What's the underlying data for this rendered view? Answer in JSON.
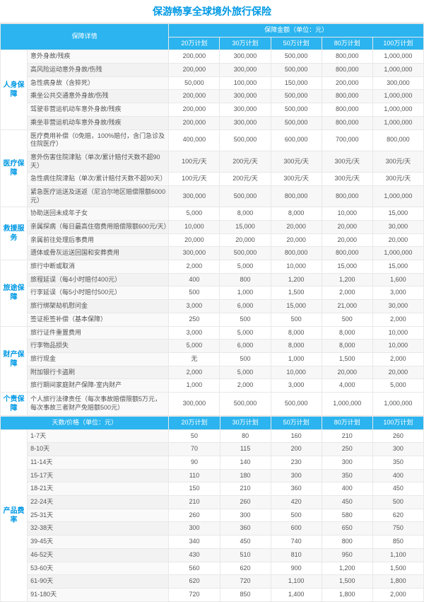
{
  "title": "保游畅享全球境外旅行保险",
  "header1": {
    "cat": "保障详情",
    "amt": "保障金额（单位：元）"
  },
  "plans": [
    "20万计划",
    "30万计划",
    "50万计划",
    "80万计划",
    "100万计划"
  ],
  "sections": [
    {
      "name": "人身保障",
      "rows": [
        {
          "d": "意外身故/残疾",
          "v": [
            "200,000",
            "300,000",
            "500,000",
            "800,000",
            "1,000,000"
          ]
        },
        {
          "d": "高风险运动意外身故/伤残",
          "v": [
            "200,000",
            "300,000",
            "500,000",
            "800,000",
            "1,000,000"
          ]
        },
        {
          "d": "急性病身故（含猝死）",
          "v": [
            "50,000",
            "100,000",
            "150,000",
            "200,000",
            "300,000"
          ]
        },
        {
          "d": "乘坐公共交通意外身故/伤残",
          "v": [
            "200,000",
            "300,000",
            "500,000",
            "800,000",
            "1,000,000"
          ]
        },
        {
          "d": "驾驶非营运机动车意外身故/残疾",
          "v": [
            "200,000",
            "300,000",
            "500,000",
            "800,000",
            "1,000,000"
          ]
        },
        {
          "d": "乘坐非营运机动车意外身故/残疾",
          "v": [
            "200,000",
            "300,000",
            "500,000",
            "800,000",
            "1,000,000"
          ]
        }
      ]
    },
    {
      "name": "医疗保障",
      "rows": [
        {
          "d": "医疗费用补偿（0免赔，100%赔付，含门急诊及住院医疗）",
          "v": [
            "400,000",
            "500,000",
            "600,000",
            "700,000",
            "800,000"
          ]
        },
        {
          "d": "意外伤害住院津贴（单次/累计赔付天数不超90天）",
          "v": [
            "100元/天",
            "200元/天",
            "300元/天",
            "300元/天",
            "300元/天"
          ]
        },
        {
          "d": "急性病住院津贴（单次/累计赔付天数不超90天）",
          "v": [
            "100元/天",
            "200元/天",
            "300元/天",
            "300元/天",
            "300元/天"
          ]
        },
        {
          "d": "紧急医疗运送及送返（尼泊尔地区赔偿限额6000元）",
          "v": [
            "300,000",
            "500,000",
            "800,000",
            "800,000",
            "1,000,000"
          ]
        }
      ]
    },
    {
      "name": "救援服务",
      "rows": [
        {
          "d": "协助送回未成年子女",
          "v": [
            "5,000",
            "8,000",
            "8,000",
            "10,000",
            "15,000"
          ]
        },
        {
          "d": "亲属探病（每日最高住宿费用赔偿限额600元/天）",
          "v": [
            "10,000",
            "15,000",
            "20,000",
            "20,000",
            "30,000"
          ]
        },
        {
          "d": "亲属前往处理后事费用",
          "v": [
            "20,000",
            "20,000",
            "20,000",
            "20,000",
            "20,000"
          ]
        },
        {
          "d": "遗体或骨灰运送回国和安葬费用",
          "v": [
            "300,000",
            "500,000",
            "800,000",
            "800,000",
            "1,000,000"
          ]
        }
      ]
    },
    {
      "name": "旅途保障",
      "rows": [
        {
          "d": "旅行中断或取消",
          "v": [
            "2,000",
            "5,000",
            "10,000",
            "15,000",
            "15,000"
          ]
        },
        {
          "d": "旅程延误（每4小时赔付400元）",
          "v": [
            "400",
            "800",
            "1,200",
            "1,200",
            "1,600"
          ]
        },
        {
          "d": "行李延误（每5小时赔付500元）",
          "v": [
            "500",
            "1,000",
            "1,500",
            "2,000",
            "3,000"
          ]
        },
        {
          "d": "旅行绑架劫机慰问金",
          "v": [
            "3,000",
            "6,000",
            "15,000",
            "21,000",
            "30,000"
          ]
        },
        {
          "d": "签证拒签补偿（基本保障）",
          "v": [
            "250",
            "500",
            "500",
            "500",
            "2,000"
          ]
        }
      ]
    },
    {
      "name": "财产保障",
      "rows": [
        {
          "d": "旅行证件重置费用",
          "v": [
            "3,000",
            "5,000",
            "8,000",
            "8,000",
            "10,000"
          ]
        },
        {
          "d": "行李物品损失",
          "v": [
            "5,000",
            "6,000",
            "8,000",
            "8,000",
            "10,000"
          ]
        },
        {
          "d": "旅行现金",
          "v": [
            "无",
            "500",
            "1,000",
            "1,500",
            "2,000"
          ]
        },
        {
          "d": "附加银行卡盗刷",
          "v": [
            "2,000",
            "5,000",
            "10,000",
            "20,000",
            "20,000"
          ]
        },
        {
          "d": "旅行期间家庭财产保障-室内财产",
          "v": [
            "1,000",
            "2,000",
            "3,000",
            "4,000",
            "5,000"
          ]
        }
      ]
    },
    {
      "name": "个责保障",
      "rows": [
        {
          "d": "个人旅行法律责任（每次事故赔偿限额5万元，每次事故三者财产免赔额500元）",
          "v": [
            "300,000",
            "500,000",
            "500,000",
            "1,000,000",
            "1,000,000"
          ]
        }
      ]
    }
  ],
  "header2": {
    "cat": "天数/价格（单位：元）"
  },
  "price": {
    "name": "产品费率",
    "rows": [
      {
        "d": "1-7天",
        "v": [
          "50",
          "80",
          "160",
          "210",
          "260"
        ]
      },
      {
        "d": "8-10天",
        "v": [
          "70",
          "115",
          "200",
          "250",
          "300"
        ]
      },
      {
        "d": "11-14天",
        "v": [
          "90",
          "140",
          "230",
          "300",
          "350"
        ]
      },
      {
        "d": "15-17天",
        "v": [
          "110",
          "180",
          "300",
          "350",
          "400"
        ]
      },
      {
        "d": "18-21天",
        "v": [
          "150",
          "210",
          "360",
          "400",
          "450"
        ]
      },
      {
        "d": "22-24天",
        "v": [
          "210",
          "260",
          "420",
          "450",
          "500"
        ]
      },
      {
        "d": "25-31天",
        "v": [
          "260",
          "300",
          "500",
          "580",
          "620"
        ]
      },
      {
        "d": "32-38天",
        "v": [
          "300",
          "360",
          "600",
          "650",
          "750"
        ]
      },
      {
        "d": "39-45天",
        "v": [
          "340",
          "450",
          "740",
          "800",
          "850"
        ]
      },
      {
        "d": "46-52天",
        "v": [
          "430",
          "510",
          "810",
          "950",
          "1,100"
        ]
      },
      {
        "d": "53-60天",
        "v": [
          "560",
          "620",
          "900",
          "1,200",
          "1,500"
        ]
      },
      {
        "d": "61-90天",
        "v": [
          "620",
          "720",
          "1,100",
          "1,500",
          "1,800"
        ]
      },
      {
        "d": "91-180天",
        "v": [
          "720",
          "850",
          "1,400",
          "1,800",
          "2,000"
        ]
      }
    ]
  }
}
